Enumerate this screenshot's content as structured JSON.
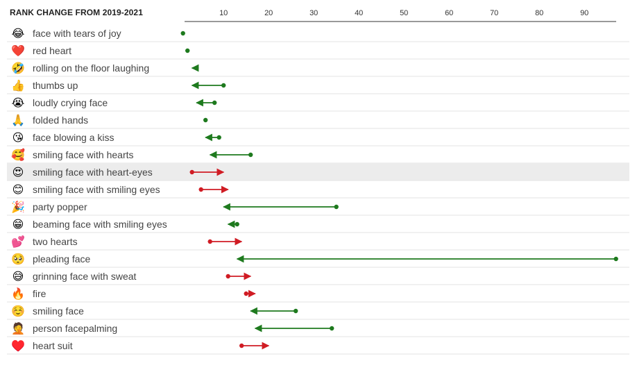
{
  "chart_data": {
    "type": "dumbbell",
    "title": "RANK CHANGE FROM 2019-2021",
    "xlabel": "",
    "ylabel": "",
    "x_ticks": [
      10,
      20,
      30,
      40,
      50,
      60,
      70,
      80,
      90
    ],
    "xlim": [
      1,
      97
    ],
    "colors": {
      "improved": "#1e7a1e",
      "worsened": "#d01c24"
    },
    "highlight_row": "smiling face with heart-eyes",
    "rows": [
      {
        "emoji": "😂",
        "label": "face with tears of joy",
        "rank_2019": 1,
        "rank_2021": 1
      },
      {
        "emoji": "❤️",
        "label": "red heart",
        "rank_2019": 2,
        "rank_2021": 2
      },
      {
        "emoji": "🤣",
        "label": "rolling on the floor laughing",
        "rank_2019": 4,
        "rank_2021": 3
      },
      {
        "emoji": "👍",
        "label": "thumbs up",
        "rank_2019": 10,
        "rank_2021": 3
      },
      {
        "emoji": "😭",
        "label": "loudly crying face",
        "rank_2019": 8,
        "rank_2021": 4
      },
      {
        "emoji": "🙏",
        "label": "folded hands",
        "rank_2019": 6,
        "rank_2021": 6
      },
      {
        "emoji": "😘",
        "label": "face blowing a kiss",
        "rank_2019": 9,
        "rank_2021": 6
      },
      {
        "emoji": "🥰",
        "label": "smiling face with hearts",
        "rank_2019": 16,
        "rank_2021": 7
      },
      {
        "emoji": "😍",
        "label": "smiling face with heart-eyes",
        "rank_2019": 3,
        "rank_2021": 10
      },
      {
        "emoji": "😊",
        "label": "smiling face with smiling eyes",
        "rank_2019": 5,
        "rank_2021": 11
      },
      {
        "emoji": "🎉",
        "label": "party popper",
        "rank_2019": 35,
        "rank_2021": 10
      },
      {
        "emoji": "😁",
        "label": "beaming face with smiling eyes",
        "rank_2019": 13,
        "rank_2021": 11
      },
      {
        "emoji": "💕",
        "label": "two hearts",
        "rank_2019": 7,
        "rank_2021": 14
      },
      {
        "emoji": "🥺",
        "label": "pleading face",
        "rank_2019": 97,
        "rank_2021": 13
      },
      {
        "emoji": "😅",
        "label": "grinning face with sweat",
        "rank_2019": 11,
        "rank_2021": 16
      },
      {
        "emoji": "🔥",
        "label": "fire",
        "rank_2019": 15,
        "rank_2021": 17
      },
      {
        "emoji": "☺️",
        "label": "smiling face",
        "rank_2019": 26,
        "rank_2021": 16
      },
      {
        "emoji": "🤦",
        "label": "person facepalming",
        "rank_2019": 34,
        "rank_2021": 17
      },
      {
        "emoji": "♥️",
        "label": "heart suit",
        "rank_2019": 14,
        "rank_2021": 20
      }
    ]
  }
}
